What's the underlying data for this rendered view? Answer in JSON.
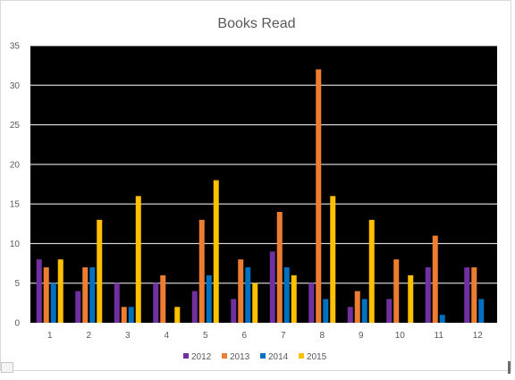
{
  "chart_data": {
    "type": "bar",
    "title": "Books Read",
    "categories": [
      "1",
      "2",
      "3",
      "4",
      "5",
      "6",
      "7",
      "8",
      "9",
      "10",
      "11",
      "12"
    ],
    "series": [
      {
        "name": "2012",
        "color": "#7030a0",
        "values": [
          8,
          4,
          5,
          5,
          4,
          3,
          9,
          5,
          2,
          3,
          7,
          7
        ]
      },
      {
        "name": "2013",
        "color": "#ed7d31",
        "values": [
          7,
          7,
          2,
          6,
          13,
          8,
          14,
          32,
          4,
          8,
          11,
          7
        ]
      },
      {
        "name": "2014",
        "color": "#0070c0",
        "values": [
          5,
          7,
          2,
          0,
          6,
          7,
          7,
          3,
          3,
          0,
          1,
          3
        ]
      },
      {
        "name": "2015",
        "color": "#ffc000",
        "values": [
          8,
          13,
          16,
          2,
          18,
          5,
          6,
          16,
          13,
          6,
          0,
          0
        ]
      }
    ],
    "ylim": [
      0,
      35
    ],
    "yticks": [
      0,
      5,
      10,
      15,
      20,
      25,
      30,
      35
    ],
    "plot_background": "#000000",
    "grid": true,
    "grid_color": "#ffffff",
    "legend_position": "bottom"
  }
}
